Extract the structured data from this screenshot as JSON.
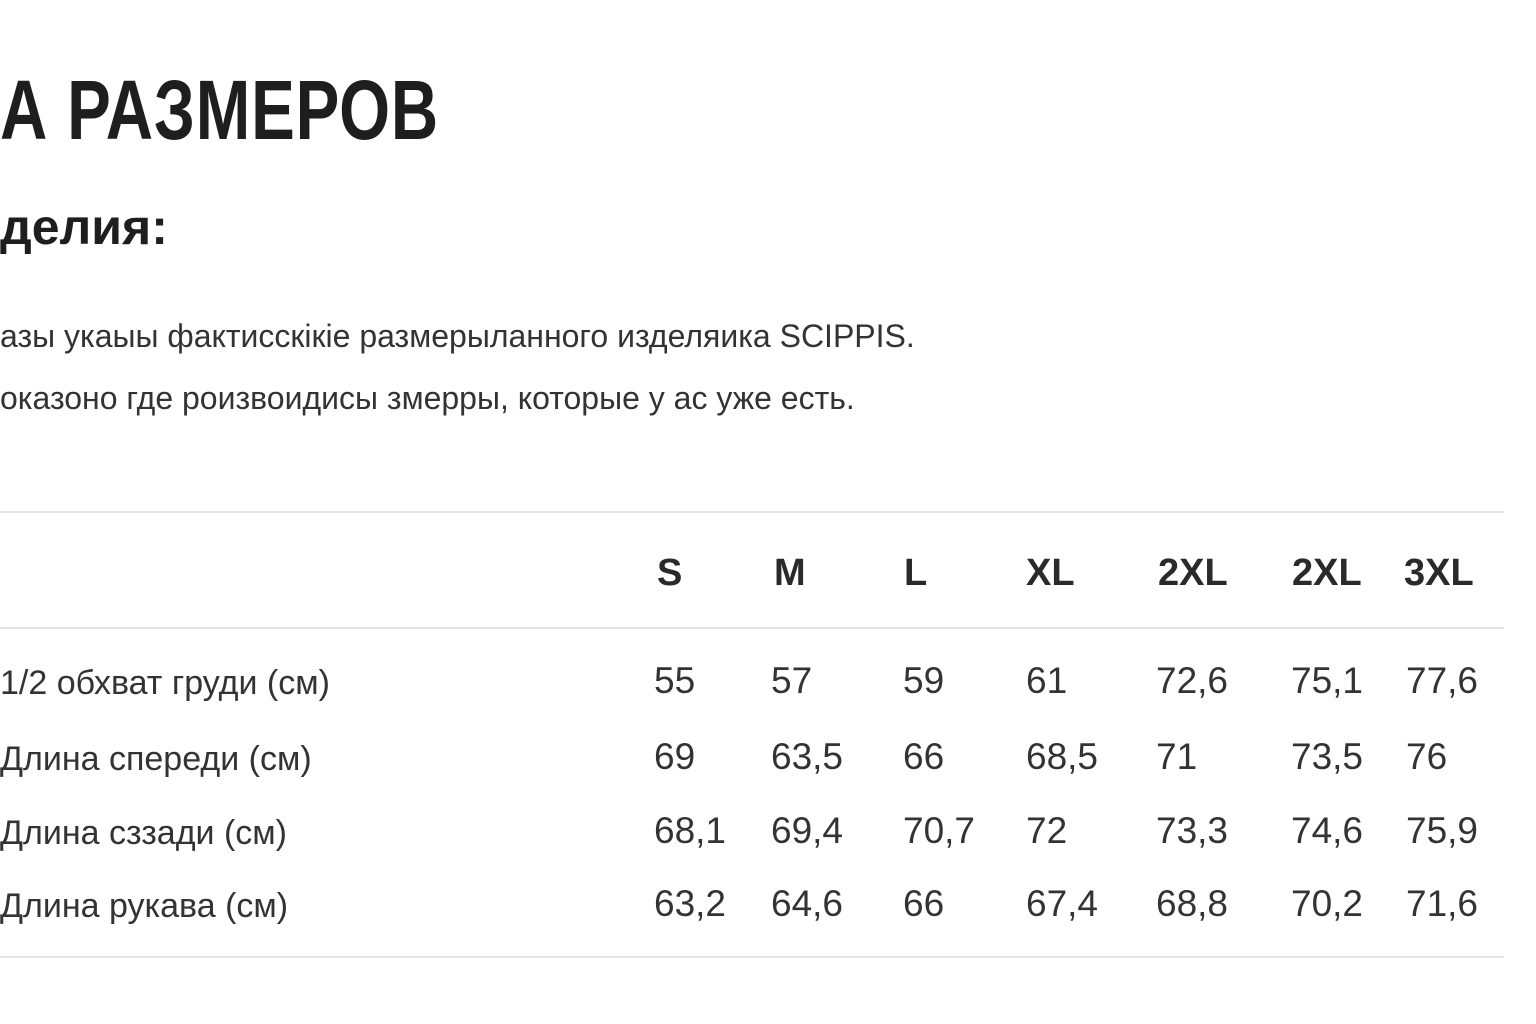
{
  "title": "А РАЗМЕРОВ",
  "subtitle": "делия:",
  "paragraphs": [
    "азы укаыы фактисскiкiе размерыланного изделяика SCIPPIS.",
    "оказоно где роизвоидисы змерры, которые у ас уже есть."
  ],
  "table": {
    "sizes": [
      "S",
      "M",
      "L",
      "XL",
      "2XL",
      "2XL",
      "3XL"
    ],
    "rows": [
      {
        "label": "1/2 обхват груди (см)",
        "values": [
          "55",
          "57",
          "59",
          "61",
          "72,6",
          "75,1",
          "77,6"
        ]
      },
      {
        "label": "Длина спереди (см)",
        "values": [
          "69",
          "63,5",
          "66",
          "68,5",
          "71",
          "73,5",
          "76"
        ]
      },
      {
        "label": "Длина сззади (см)",
        "values": [
          "68,1",
          "69,4",
          "70,7",
          "72",
          "73,3",
          "74,6",
          "75,9"
        ]
      },
      {
        "label": "Длина рукава (см)",
        "values": [
          "63,2",
          "64,6",
          "66",
          "67,4",
          "68,8",
          "70,2",
          "71,6"
        ]
      }
    ]
  }
}
